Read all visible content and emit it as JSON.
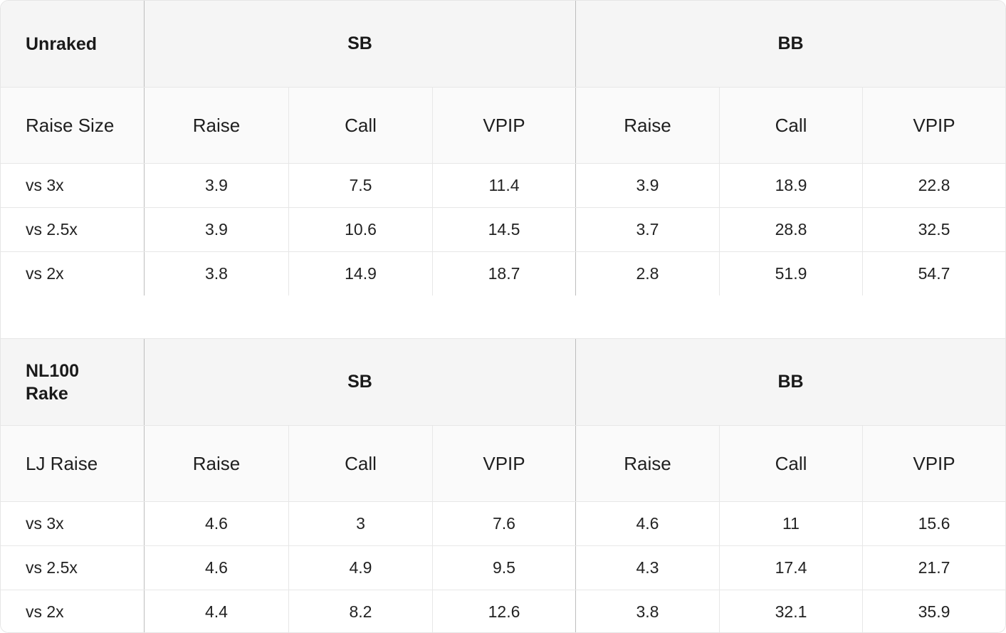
{
  "tables": [
    {
      "corner_label": "Unraked",
      "groups": [
        "SB",
        "BB"
      ],
      "row_header": "Raise Size",
      "sub_headers": [
        "Raise",
        "Call",
        "VPIP",
        "Raise",
        "Call",
        "VPIP"
      ],
      "rows": [
        {
          "label": "vs 3x",
          "values": [
            "3.9",
            "7.5",
            "11.4",
            "3.9",
            "18.9",
            "22.8"
          ]
        },
        {
          "label": "vs 2.5x",
          "values": [
            "3.9",
            "10.6",
            "14.5",
            "3.7",
            "28.8",
            "32.5"
          ]
        },
        {
          "label": "vs 2x",
          "values": [
            "3.8",
            "14.9",
            "18.7",
            "2.8",
            "51.9",
            "54.7"
          ]
        }
      ]
    },
    {
      "corner_label": "NL100\nRake",
      "groups": [
        "SB",
        "BB"
      ],
      "row_header": "LJ Raise",
      "sub_headers": [
        "Raise",
        "Call",
        "VPIP",
        "Raise",
        "Call",
        "VPIP"
      ],
      "rows": [
        {
          "label": "vs 3x",
          "values": [
            "4.6",
            "3",
            "7.6",
            "4.6",
            "11",
            "15.6"
          ]
        },
        {
          "label": "vs 2.5x",
          "values": [
            "4.6",
            "4.9",
            "9.5",
            "4.3",
            "17.4",
            "21.7"
          ]
        },
        {
          "label": "vs 2x",
          "values": [
            "4.4",
            "8.2",
            "12.6",
            "3.8",
            "32.1",
            "35.9"
          ]
        }
      ]
    }
  ]
}
